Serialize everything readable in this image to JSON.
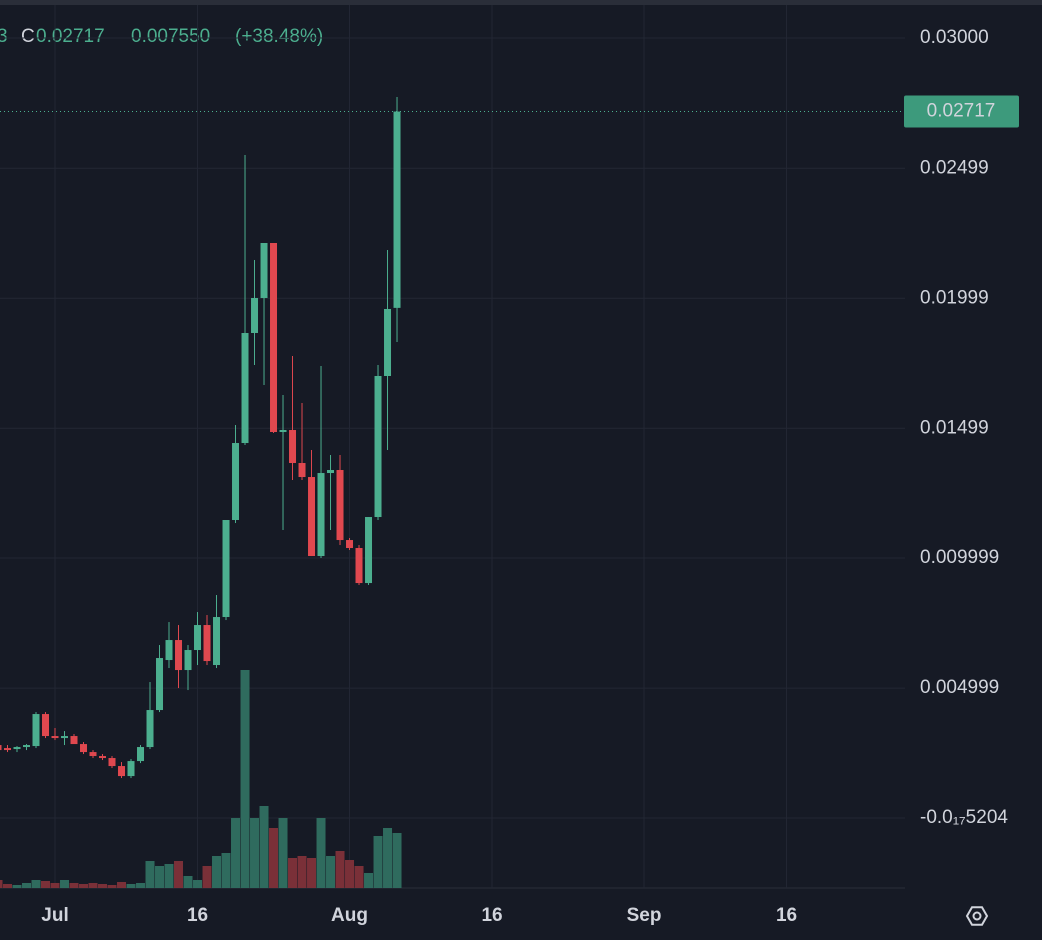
{
  "chart_data": {
    "type": "candlestick",
    "header": {
      "fragment": "3",
      "close_key": "C",
      "change": "0.007550",
      "change_percent": "(+38.48%)"
    },
    "x": [
      -6,
      -5,
      -4,
      -3,
      -2,
      -1,
      0,
      1,
      2,
      3,
      4,
      5,
      6,
      7,
      8,
      9,
      10,
      11,
      12,
      13,
      14,
      15,
      16,
      17,
      18,
      19,
      20,
      21,
      22,
      23,
      24,
      25,
      26,
      27,
      28,
      29,
      30,
      31,
      32,
      33,
      34,
      35,
      36
    ],
    "open": [
      0.002808,
      0.002692,
      0.002654,
      0.002731,
      0.002769,
      0.004,
      0.003154,
      0.003077,
      0.003154,
      0.002846,
      0.002538,
      0.002385,
      0.002308,
      0.002,
      0.001615,
      0.002192,
      0.002731,
      0.004154,
      0.006077,
      0.006846,
      0.005692,
      0.006462,
      0.007423,
      0.005885,
      0.007731,
      0.011462,
      0.014423,
      0.018654,
      0.02,
      0.022115,
      0.014846,
      0.014923,
      0.013654,
      0.013115,
      0.010077,
      0.013269,
      0.013385,
      0.010692,
      0.010385,
      0.009038,
      0.011577,
      0.017,
      0.01962
    ],
    "high": [
      0.002885,
      0.002808,
      0.002769,
      0.002846,
      0.004077,
      0.004077,
      0.003462,
      0.003346,
      0.003231,
      0.002923,
      0.002615,
      0.002462,
      0.002385,
      0.002154,
      0.002269,
      0.002808,
      0.005231,
      0.006654,
      0.007538,
      0.007423,
      0.006654,
      0.007923,
      0.007808,
      0.008577,
      0.011462,
      0.015115,
      0.0255,
      0.021462,
      0.022115,
      0.022115,
      0.016269,
      0.017769,
      0.015962,
      0.014154,
      0.017385,
      0.013962,
      0.013962,
      0.010769,
      0.0105,
      0.011577,
      0.017423,
      0.021846,
      0.02773
    ],
    "low": [
      0.002538,
      0.002538,
      0.002538,
      0.002615,
      0.002692,
      0.003077,
      0.003,
      0.002808,
      0.002923,
      0.002462,
      0.002308,
      0.002231,
      0.001923,
      0.001538,
      0.001538,
      0.002115,
      0.002654,
      0.004077,
      0.005769,
      0.005,
      0.004923,
      0.005885,
      0.005885,
      0.005769,
      0.007615,
      0.011346,
      0.014346,
      0.017423,
      0.016654,
      0.014808,
      0.011077,
      0.013,
      0.013,
      0.010077,
      0.01,
      0.011077,
      0.0105,
      0.010308,
      0.008962,
      0.008962,
      0.011462,
      0.014154,
      0.018308
    ],
    "close": [
      0.002615,
      0.002615,
      0.002731,
      0.002808,
      0.004,
      0.003154,
      0.003077,
      0.003154,
      0.002846,
      0.002538,
      0.002385,
      0.002308,
      0.002,
      0.001615,
      0.002192,
      0.002731,
      0.004154,
      0.006154,
      0.006846,
      0.005692,
      0.006462,
      0.007423,
      0.006038,
      0.007731,
      0.011462,
      0.014423,
      0.018654,
      0.02,
      0.022115,
      0.014846,
      0.014923,
      0.013654,
      0.013115,
      0.010077,
      0.013269,
      0.013385,
      0.010692,
      0.010385,
      0.009038,
      0.011577,
      0.017,
      0.019577,
      0.02717
    ],
    "volume": [
      8,
      4,
      3,
      5,
      8,
      7,
      5,
      8,
      5,
      4,
      5,
      4,
      3,
      6,
      4,
      5,
      27,
      22,
      24,
      27,
      12,
      8,
      22,
      32,
      35,
      70,
      218,
      70,
      82,
      60,
      70,
      30,
      32,
      30,
      70,
      32,
      37,
      28,
      22,
      15,
      52,
      60,
      55
    ],
    "up_color": "#4caf8f",
    "down_color": "#e0484f",
    "volume_up_color": "#2f6b5e",
    "volume_down_color": "#7a3038",
    "xlim": [
      -5.79,
      89.47
    ],
    "xticks": [
      {
        "value": 0,
        "label": "Jul"
      },
      {
        "value": 15,
        "label": "16"
      },
      {
        "value": 31,
        "label": "Aug"
      },
      {
        "value": 46,
        "label": "16"
      },
      {
        "value": 62,
        "label": "Sep"
      },
      {
        "value": 77,
        "label": "16"
      }
    ],
    "ylim": [
      -0.00269,
      0.03146
    ],
    "yticks": [
      {
        "value": 0.03,
        "label": "0.03000"
      },
      0.02499,
      0.01999,
      0.01499,
      0.009999,
      0.004999,
      {
        "value": -5.204e-18,
        "label": "-0.0₁₇5204"
      }
    ],
    "grid": true
  }
}
